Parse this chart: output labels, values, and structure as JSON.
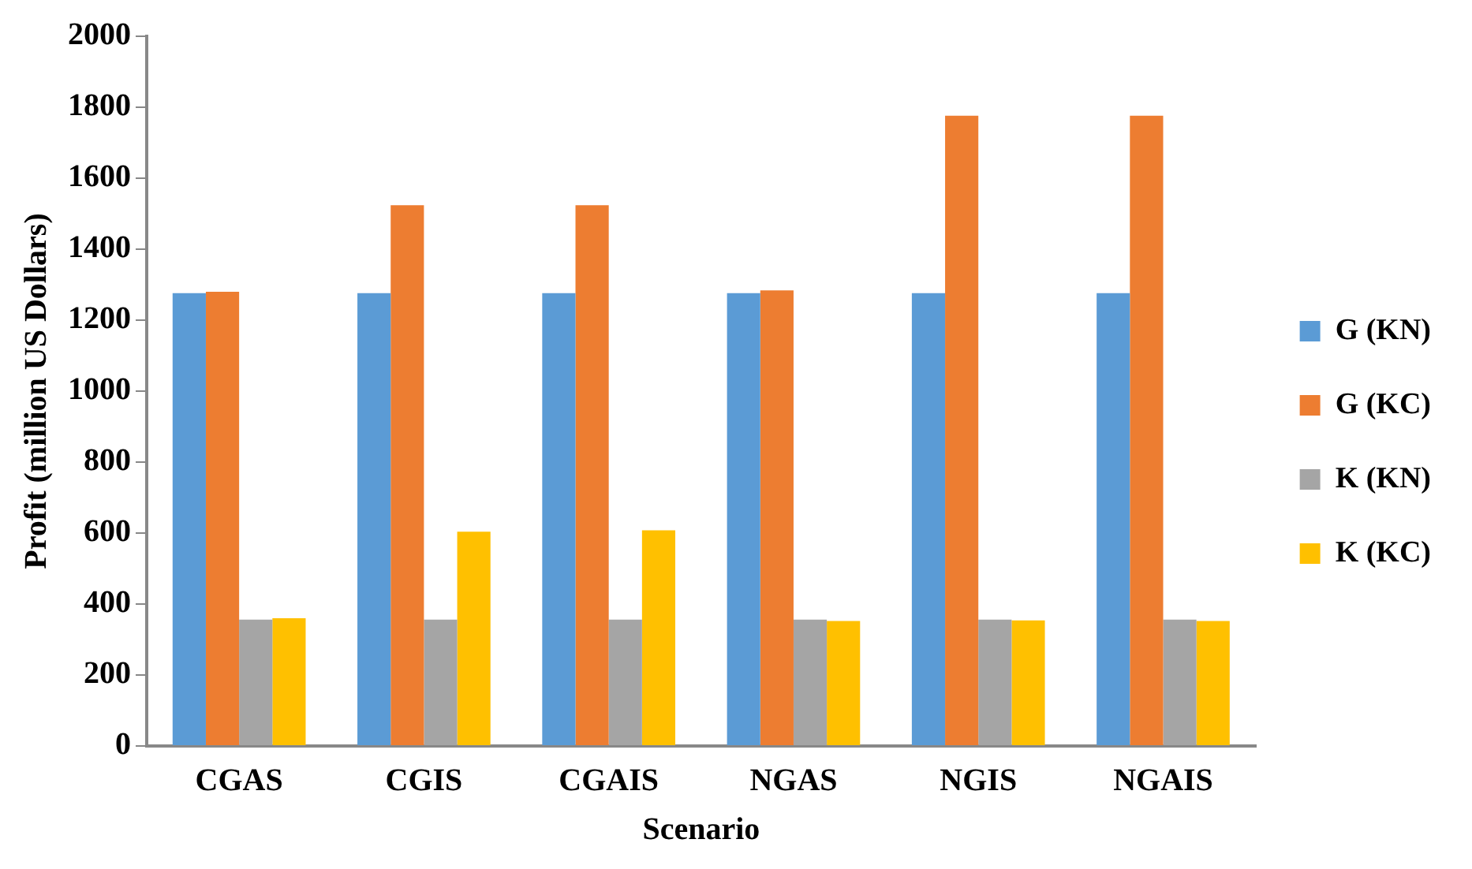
{
  "chart_data": {
    "type": "bar",
    "xlabel": "Scenario",
    "ylabel": "Profit (million US Dollars)",
    "categories": [
      "CGAS",
      "CGIS",
      "CGAIS",
      "NGAS",
      "NGIS",
      "NGAIS"
    ],
    "series": [
      {
        "name": "G (KN)",
        "color": "#5b9bd5",
        "values": [
          1276,
          1276,
          1276,
          1276,
          1276,
          1276
        ]
      },
      {
        "name": "G (KC)",
        "color": "#ed7d31",
        "values": [
          1280,
          1524,
          1524,
          1284,
          1776,
          1776
        ]
      },
      {
        "name": "K (KN)",
        "color": "#a5a5a5",
        "values": [
          356,
          356,
          356,
          356,
          356,
          356
        ]
      },
      {
        "name": "K (KC)",
        "color": "#ffc000",
        "values": [
          360,
          604,
          608,
          352,
          354,
          352
        ]
      }
    ],
    "ylim": [
      0,
      2000
    ],
    "yticks": [
      0,
      200,
      400,
      600,
      800,
      1000,
      1200,
      1400,
      1600,
      1800,
      2000
    ],
    "grid": false,
    "legend": "right"
  }
}
